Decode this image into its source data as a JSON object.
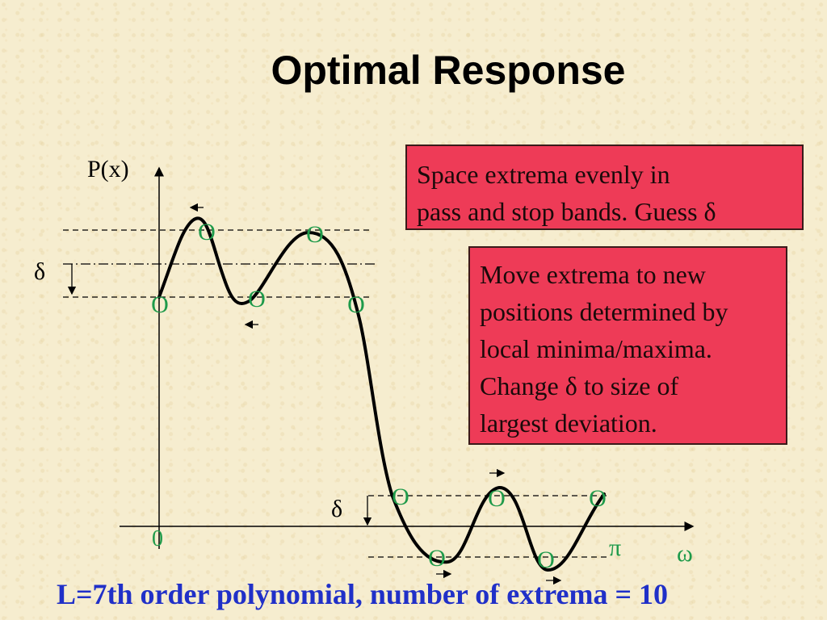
{
  "title": "Optimal Response",
  "note_top": {
    "line1": "Space extrema evenly in",
    "line2": "pass and stop bands. Guess δ"
  },
  "note_right": {
    "lines": [
      "Move extrema to new",
      "positions determined by",
      "local minima/maxima.",
      "Change δ to size of",
      "largest deviation."
    ]
  },
  "axis": {
    "y_label": "P(x)",
    "x_label": "ω",
    "origin_label": "0",
    "pi_label": "π",
    "delta_pass": "δ",
    "delta_stop": "δ",
    "extrema_marker": "O"
  },
  "caption": "L=7th order polynomial, number of extrema = 10",
  "colors": {
    "background": "#f6edcf",
    "box_fill": "#ee3b57",
    "marker": "#1e9a4a",
    "caption": "#2030c8",
    "curve": "#000000"
  }
}
